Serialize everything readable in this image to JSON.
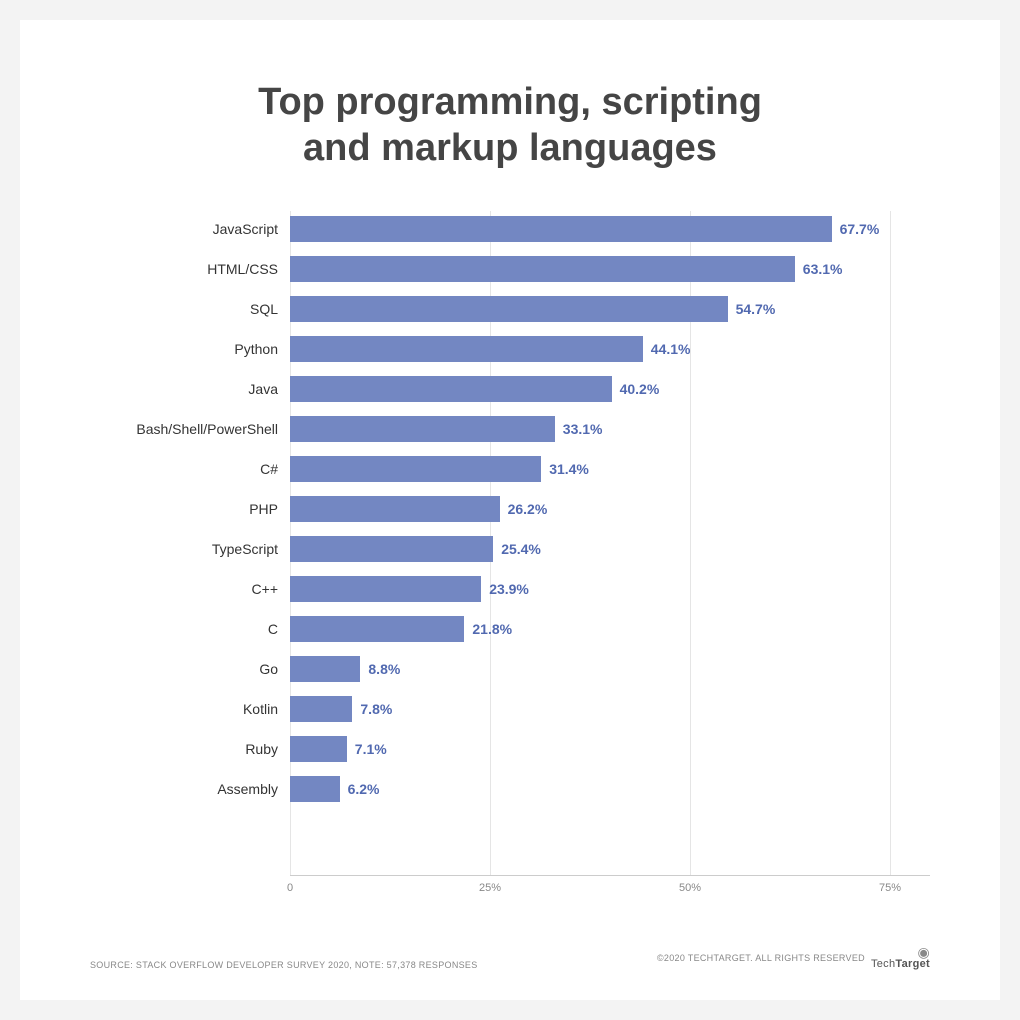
{
  "chart": {
    "type": "bar-horizontal",
    "title": "Top programming, scripting\nand markup languages",
    "title_color": "#454545",
    "title_fontsize": 38,
    "bar_color": "#7387c2",
    "value_label_color": "#5169b0",
    "value_label_fontsize": 14,
    "category_label_color": "#333333",
    "category_label_fontsize": 14,
    "background_color": "#ffffff",
    "page_background": "#f3f3f3",
    "gridline_color": "#e5e5e5",
    "axis_color": "#cccccc",
    "tick_label_color": "#888888",
    "tick_label_fontsize": 11,
    "xmax_percent": 80,
    "ticks": [
      {
        "value": 0,
        "label": "0"
      },
      {
        "value": 25,
        "label": "25%"
      },
      {
        "value": 50,
        "label": "50%"
      },
      {
        "value": 75,
        "label": "75%"
      }
    ],
    "items": [
      {
        "label": "JavaScript",
        "value": 67.7,
        "display": "67.7%"
      },
      {
        "label": "HTML/CSS",
        "value": 63.1,
        "display": "63.1%"
      },
      {
        "label": "SQL",
        "value": 54.7,
        "display": "54.7%"
      },
      {
        "label": "Python",
        "value": 44.1,
        "display": "44.1%"
      },
      {
        "label": "Java",
        "value": 40.2,
        "display": "40.2%"
      },
      {
        "label": "Bash/Shell/PowerShell",
        "value": 33.1,
        "display": "33.1%"
      },
      {
        "label": "C#",
        "value": 31.4,
        "display": "31.4%"
      },
      {
        "label": "PHP",
        "value": 26.2,
        "display": "26.2%"
      },
      {
        "label": "TypeScript",
        "value": 25.4,
        "display": "25.4%"
      },
      {
        "label": "C++",
        "value": 23.9,
        "display": "23.9%"
      },
      {
        "label": "C",
        "value": 21.8,
        "display": "21.8%"
      },
      {
        "label": "Go",
        "value": 8.8,
        "display": "8.8%"
      },
      {
        "label": "Kotlin",
        "value": 7.8,
        "display": "7.8%"
      },
      {
        "label": "Ruby",
        "value": 7.1,
        "display": "7.1%"
      },
      {
        "label": "Assembly",
        "value": 6.2,
        "display": "6.2%"
      }
    ]
  },
  "footer": {
    "source": "SOURCE: STACK OVERFLOW DEVELOPER SURVEY 2020, NOTE: 57,378 RESPONSES",
    "copyright": "©2020 TECHTARGET. ALL RIGHTS RESERVED",
    "logo_brand_light": "Tech",
    "logo_brand_bold": "Target"
  }
}
